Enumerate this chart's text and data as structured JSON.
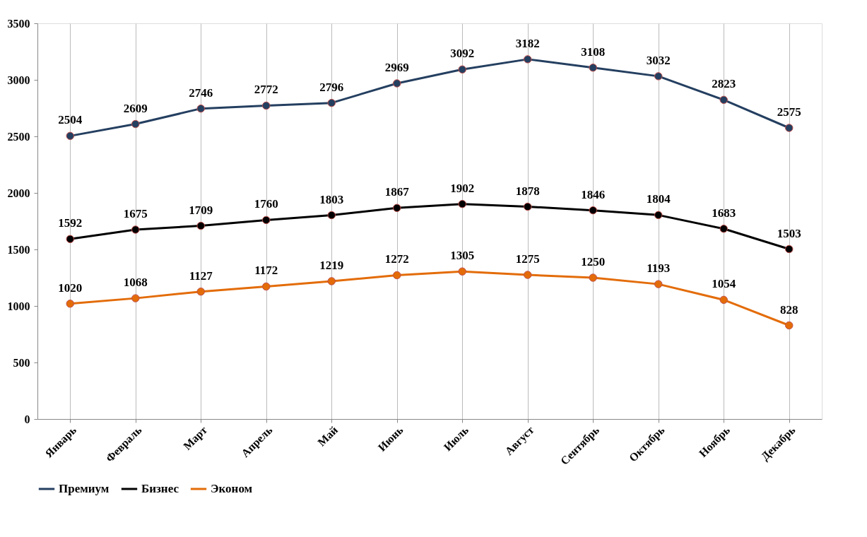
{
  "chart_data": {
    "type": "line",
    "categories": [
      "Январь",
      "Февраль",
      "Март",
      "Апрель",
      "Май",
      "Июнь",
      "Июль",
      "Август",
      "Сентябрь",
      "Октябрь",
      "Ноябрь",
      "Декабрь"
    ],
    "series": [
      {
        "name": "Премиум",
        "color": "#243f60",
        "values": [
          2504,
          2609,
          2746,
          2772,
          2796,
          2969,
          3092,
          3182,
          3108,
          3032,
          2823,
          2575
        ]
      },
      {
        "name": "Бизнес",
        "color": "#000000",
        "values": [
          1592,
          1675,
          1709,
          1760,
          1803,
          1867,
          1902,
          1878,
          1846,
          1804,
          1683,
          1503
        ]
      },
      {
        "name": "Эконом",
        "color": "#e36c09",
        "values": [
          1020,
          1068,
          1127,
          1172,
          1219,
          1272,
          1305,
          1275,
          1250,
          1193,
          1054,
          828
        ]
      }
    ],
    "ylim": [
      0,
      3500
    ],
    "yticks": [
      0,
      500,
      1000,
      1500,
      2000,
      2500,
      3000,
      3500
    ],
    "grid": "x",
    "legend": "bottom",
    "marker": "circle",
    "line_style": "solid",
    "data_labels": true
  }
}
